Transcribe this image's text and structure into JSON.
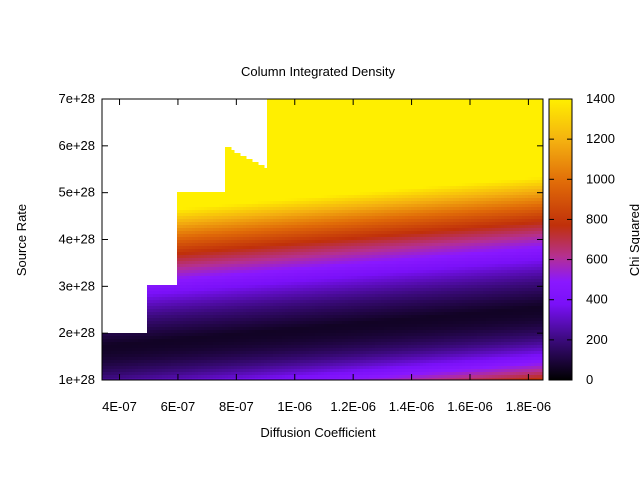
{
  "chart_data": {
    "type": "heatmap",
    "title": "Column Integrated Density",
    "xlabel": "Diffusion Coefficient",
    "ylabel": "Source Rate",
    "xlim": [
      3.4e-07,
      1.85e-06
    ],
    "ylim": [
      1e+28,
      7e+28
    ],
    "x_ticks": [
      {
        "value": 4e-07,
        "label": "4E-07"
      },
      {
        "value": 6e-07,
        "label": "6E-07"
      },
      {
        "value": 8e-07,
        "label": "8E-07"
      },
      {
        "value": 1e-06,
        "label": "1E-06"
      },
      {
        "value": 1.2e-06,
        "label": "1.2E-06"
      },
      {
        "value": 1.4e-06,
        "label": "1.4E-06"
      },
      {
        "value": 1.6e-06,
        "label": "1.6E-06"
      },
      {
        "value": 1.8e-06,
        "label": "1.8E-06"
      }
    ],
    "y_ticks": [
      {
        "value": 1e+28,
        "label": "1e+28"
      },
      {
        "value": 2e+28,
        "label": "2e+28"
      },
      {
        "value": 3e+28,
        "label": "3e+28"
      },
      {
        "value": 4e+28,
        "label": "4e+28"
      },
      {
        "value": 5e+28,
        "label": "5e+28"
      },
      {
        "value": 6e+28,
        "label": "6e+28"
      },
      {
        "value": 7e+28,
        "label": "7e+28"
      }
    ],
    "colorbar": {
      "label": "Chi Squared",
      "range": [
        0,
        1400
      ],
      "ticks": [
        {
          "value": 0,
          "label": "0"
        },
        {
          "value": 200,
          "label": "200"
        },
        {
          "value": 400,
          "label": "400"
        },
        {
          "value": 600,
          "label": "600"
        },
        {
          "value": 800,
          "label": "800"
        },
        {
          "value": 1000,
          "label": "1000"
        },
        {
          "value": 1200,
          "label": "1200"
        },
        {
          "value": 1400,
          "label": "1400"
        }
      ],
      "palette": [
        "#000000",
        "#3a0a7a",
        "#7a10f8",
        "#8a18ff",
        "#b53090",
        "#c0300a",
        "#e06a08",
        "#f4b010",
        "#ffef00"
      ]
    },
    "valid_region_boundary": [
      {
        "x": 3.4e-07,
        "y": 2e+28
      },
      {
        "x": 4.9e-07,
        "y": 2e+28
      },
      {
        "x": 4.9e-07,
        "y": 3e+28
      },
      {
        "x": 6e-07,
        "y": 3e+28
      },
      {
        "x": 6e-07,
        "y": 5e+28
      },
      {
        "x": 7.6e-07,
        "y": 5e+28
      },
      {
        "x": 7.6e-07,
        "y": 6e+28
      },
      {
        "x": 9.1e-07,
        "y": 5.5e+28
      },
      {
        "x": 9.1e-07,
        "y": 7e+28
      }
    ]
  }
}
